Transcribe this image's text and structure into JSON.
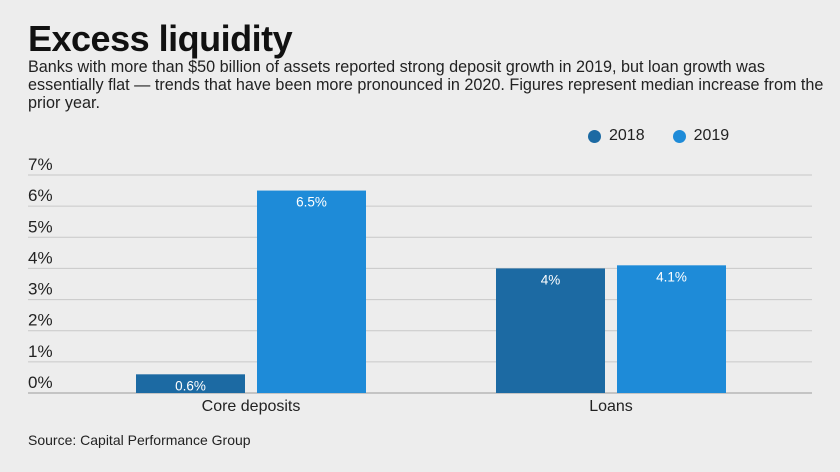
{
  "title": "Excess liquidity",
  "subtitle": "Banks with more than $50 billion of assets reported strong deposit growth in 2019, but loan growth was essentially flat — trends that have been more pronounced in 2020. Figures represent median increase from the prior year.",
  "source": "Source: Capital Performance Group",
  "colors": {
    "background": "#ededed",
    "series_2018": "#1c6aa3",
    "series_2019": "#1e8bd8",
    "gridline": "#c8c8c8",
    "bar_label": "#ffffff"
  },
  "chart_data": {
    "type": "bar",
    "title": "Excess liquidity",
    "categories": [
      "Core deposits",
      "Loans"
    ],
    "series": [
      {
        "name": "2018",
        "values": [
          0.6,
          4.0
        ],
        "labels": [
          "0.6%",
          "4%"
        ]
      },
      {
        "name": "2019",
        "values": [
          6.5,
          4.1
        ],
        "labels": [
          "6.5%",
          "4.1%"
        ]
      }
    ],
    "ylim": [
      0,
      7
    ],
    "yticks": [
      "0%",
      "1%",
      "2%",
      "3%",
      "4%",
      "5%",
      "6%",
      "7%"
    ],
    "xlabel": "",
    "ylabel": "",
    "grid": true,
    "legend": "top-right"
  }
}
